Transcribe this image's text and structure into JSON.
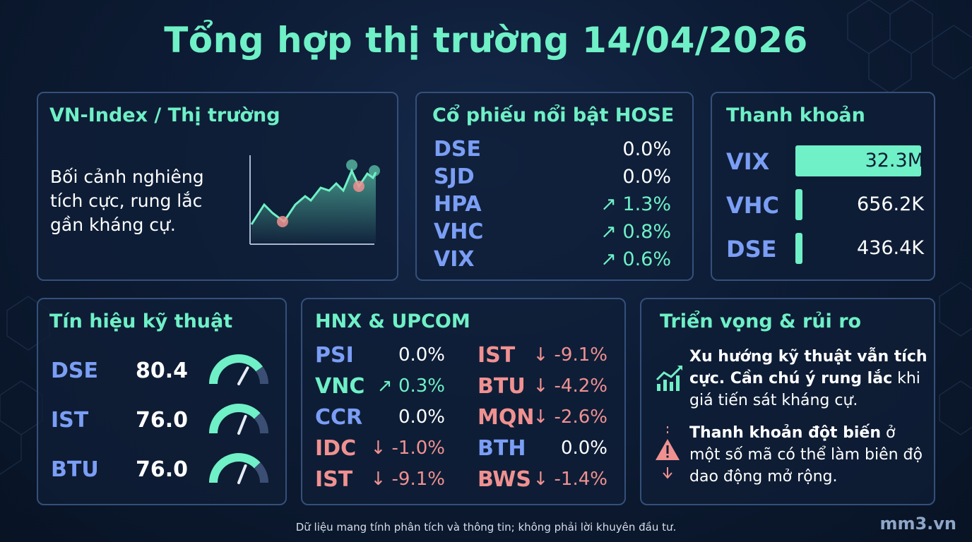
{
  "title": "Tổng hợp thị trường 14/04/2026",
  "vnindex": {
    "title": "VN-Index / Thị trường",
    "description": "Bối cảnh nghiêng tích cực, rung lắc gần kháng cự."
  },
  "hose": {
    "title": "Cổ phiếu nổi bật HOSE",
    "rows": [
      {
        "symbol": "DSE",
        "change": "0.0%",
        "direction": "flat"
      },
      {
        "symbol": "SJD",
        "change": "0.0%",
        "direction": "flat"
      },
      {
        "symbol": "HPA",
        "change": "↗ 1.3%",
        "direction": "up"
      },
      {
        "symbol": "VHC",
        "change": "↗ 0.8%",
        "direction": "up"
      },
      {
        "symbol": "VIX",
        "change": "↗ 0.6%",
        "direction": "up"
      }
    ]
  },
  "liquidity": {
    "title": "Thanh khoản",
    "rows": [
      {
        "symbol": "VIX",
        "value": "32.3M",
        "amount": 32300000
      },
      {
        "symbol": "VHC",
        "value": "656.2K",
        "amount": 656200
      },
      {
        "symbol": "DSE",
        "value": "436.4K",
        "amount": 436400
      }
    ]
  },
  "technical": {
    "title": "Tín hiệu kỹ thuật",
    "rows": [
      {
        "symbol": "DSE",
        "score": "80.4",
        "level": 0.8
      },
      {
        "symbol": "IST",
        "score": "76.0",
        "level": 0.76
      },
      {
        "symbol": "BTU",
        "score": "76.0",
        "level": 0.76
      }
    ]
  },
  "hnx_upcom": {
    "title": "HNX & UPCOM",
    "left": [
      {
        "symbol": "PSI",
        "change": "0.0%",
        "symbol_color": "blue",
        "change_color": "white"
      },
      {
        "symbol": "VNC",
        "change": "↗ 0.3%",
        "symbol_color": "green",
        "change_color": "green"
      },
      {
        "symbol": "CCR",
        "change": "0.0%",
        "symbol_color": "blue",
        "change_color": "white"
      },
      {
        "symbol": "IDC",
        "change": "↓ -1.0%",
        "symbol_color": "red",
        "change_color": "red"
      },
      {
        "symbol": "IST",
        "change": "↓ -9.1%",
        "symbol_color": "red",
        "change_color": "red"
      }
    ],
    "right": [
      {
        "symbol": "IST",
        "change": "↓ -9.1%",
        "symbol_color": "red",
        "change_color": "red"
      },
      {
        "symbol": "BTU",
        "change": "↓ -4.2%",
        "symbol_color": "red",
        "change_color": "red"
      },
      {
        "symbol": "MQN",
        "change": "↓ -2.6%",
        "symbol_color": "red",
        "change_color": "red"
      },
      {
        "symbol": "BTH",
        "change": "0.0%",
        "symbol_color": "blue",
        "change_color": "white"
      },
      {
        "symbol": "BWS",
        "change": "↓ -1.4%",
        "symbol_color": "red",
        "change_color": "red"
      }
    ]
  },
  "outlook": {
    "title": "Triển vọng & rủi ro",
    "item1_bold": "Xu hướng kỹ thuật vẫn tích cực. Cần chú ý rung lắc",
    "item1_rest": " khi giá tiến sát kháng cự.",
    "item1_icon": "trend-chart-icon",
    "item2_bold": "Thanh khoản đột biến",
    "item2_rest": " ở một số mã có thể làm biên độ dao động mở rộng.",
    "item2_icon": "warning-icon"
  },
  "footer": "Dữ liệu mang tính phân tích và thông tin; không phải lời khuyên đầu tư.",
  "brand": "mm3.vn",
  "colors": {
    "accent": "#6ff0c6",
    "negative": "#f09191",
    "symbol": "#7b9ef5",
    "background": "#0d1c35"
  }
}
